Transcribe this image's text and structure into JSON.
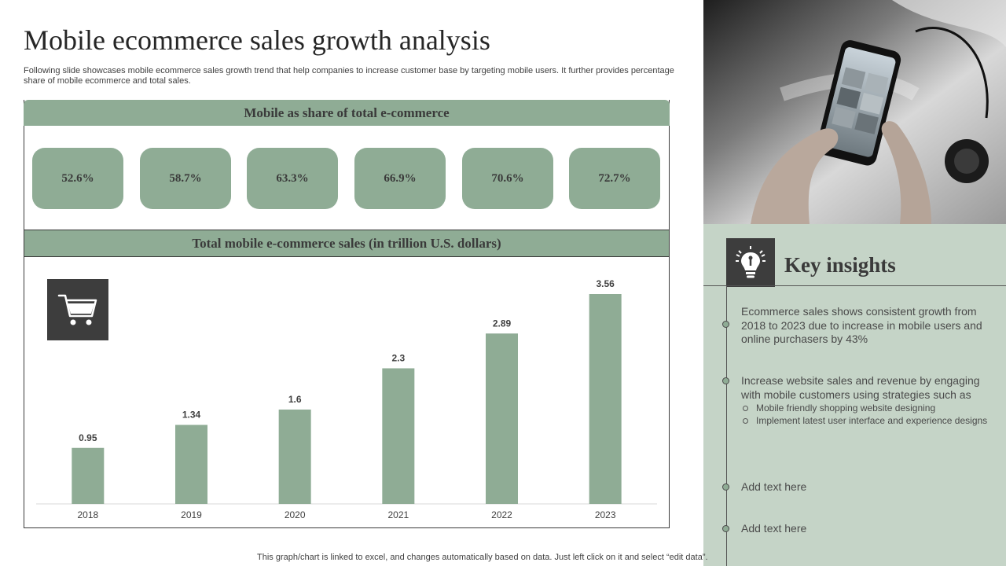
{
  "title": "Mobile ecommerce sales growth analysis",
  "subtitle": "Following slide showcases mobile ecommerce sales growth trend that help companies to increase customer base by targeting mobile users. It further provides percentage share of mobile ecommerce and total sales.",
  "share_section": {
    "heading": "Mobile as share of total e-commerce",
    "values": [
      "52.6%",
      "58.7%",
      "63.3%",
      "66.9%",
      "70.6%",
      "72.7%"
    ]
  },
  "sales_section": {
    "heading": "Total mobile e-commerce sales (in trillion U.S. dollars)"
  },
  "chart_data": {
    "type": "bar",
    "title": "Total mobile e-commerce sales (in trillion U.S. dollars)",
    "categories": [
      "2018",
      "2019",
      "2020",
      "2021",
      "2022",
      "2023"
    ],
    "values": [
      0.95,
      1.34,
      1.6,
      2.3,
      2.89,
      3.56
    ],
    "labels": [
      "0.95",
      "1.34",
      "1.6",
      "2.3",
      "2.89",
      "3.56"
    ],
    "ylim": [
      0,
      4
    ],
    "grid": false,
    "color": "#8fac95"
  },
  "insights": {
    "title": "Key insights",
    "item1": "Ecommerce sales shows consistent growth from 2018 to 2023 due to increase in mobile users and online purchasers by 43%",
    "item2": "Increase website sales and revenue by engaging with mobile customers using strategies such as",
    "item2_subs": [
      "Mobile friendly shopping website designing",
      "Implement latest user interface and experience designs"
    ],
    "item3": "Add text here",
    "item4": "Add text here"
  },
  "icons": {
    "cart": "shopping-cart-icon",
    "insight": "lightbulb-icon",
    "photo": "hands-holding-smartphone-photo"
  },
  "colors": {
    "accent_green": "#8fac95",
    "panel_green": "#c5d4c7",
    "dark_box": "#3d3d3d"
  },
  "footer": "This graph/chart is linked to excel, and changes automatically based on data. Just left click on it and select “edit data”."
}
